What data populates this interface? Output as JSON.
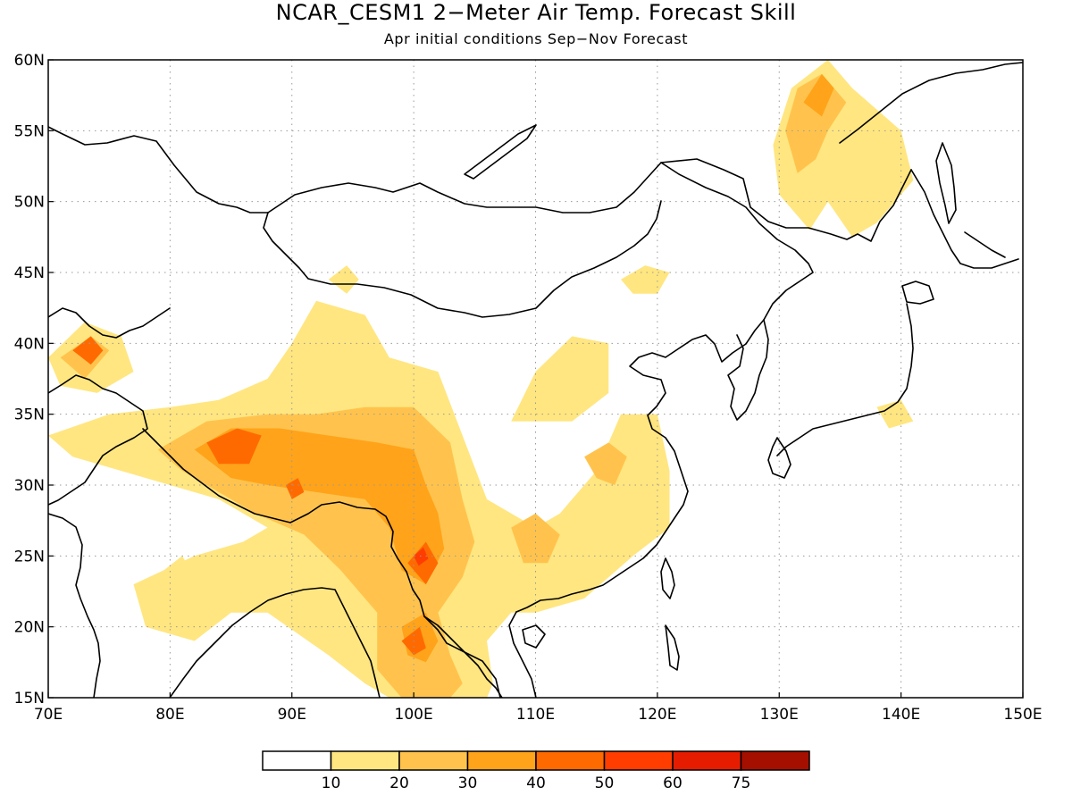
{
  "title": "NCAR_CESM1 2−Meter Air Temp. Forecast Skill",
  "subtitle": "Apr initial conditions  Sep−Nov Forecast",
  "map": {
    "lon_range": [
      70,
      150
    ],
    "lat_range": [
      15,
      60
    ],
    "lon_ticks": [
      "70E",
      "80E",
      "90E",
      "100E",
      "110E",
      "120E",
      "130E",
      "140E",
      "150E"
    ],
    "lat_ticks": [
      "15N",
      "20N",
      "25N",
      "30N",
      "35N",
      "40N",
      "45N",
      "50N",
      "55N",
      "60N"
    ],
    "grid": "dotted"
  },
  "colorbar": {
    "labels": [
      "10",
      "20",
      "30",
      "40",
      "50",
      "60",
      "75"
    ],
    "colors": [
      "#ffffff",
      "#ffe680",
      "#ffc34d",
      "#ffa31a",
      "#ff6a00",
      "#ff3d00",
      "#e61c00",
      "#a50f00"
    ]
  },
  "skill_regions": [
    {
      "level": 1,
      "points": [
        [
          70,
          33.5
        ],
        [
          75,
          35
        ],
        [
          80,
          35.5
        ],
        [
          84,
          36
        ],
        [
          88,
          37.5
        ],
        [
          90,
          40
        ],
        [
          92,
          43
        ],
        [
          96,
          42
        ],
        [
          98,
          39
        ],
        [
          102,
          38
        ],
        [
          104,
          33.5
        ],
        [
          106,
          29
        ],
        [
          110,
          27
        ],
        [
          112,
          28
        ],
        [
          115,
          31
        ],
        [
          117,
          35
        ],
        [
          120,
          35
        ],
        [
          121,
          31
        ],
        [
          121,
          27
        ],
        [
          118,
          25
        ],
        [
          114,
          22
        ],
        [
          110,
          21
        ],
        [
          108,
          21
        ],
        [
          106,
          19
        ],
        [
          106.5,
          16
        ],
        [
          106,
          15
        ],
        [
          98,
          15
        ],
        [
          96,
          16
        ],
        [
          93,
          18
        ],
        [
          88,
          21
        ],
        [
          85,
          21
        ],
        [
          82,
          19
        ],
        [
          78,
          20
        ],
        [
          77,
          23
        ],
        [
          82,
          25
        ],
        [
          86,
          26
        ],
        [
          88,
          27
        ],
        [
          84,
          29
        ],
        [
          80,
          30
        ],
        [
          76,
          31
        ],
        [
          72,
          32
        ]
      ]
    },
    {
      "level": 1,
      "points": [
        [
          70,
          39
        ],
        [
          73,
          41.5
        ],
        [
          76,
          40.5
        ],
        [
          77,
          38
        ],
        [
          74,
          36.5
        ],
        [
          71,
          37
        ]
      ]
    },
    {
      "level": 1,
      "points": [
        [
          108,
          34.5
        ],
        [
          110,
          38
        ],
        [
          113,
          40.5
        ],
        [
          116,
          40
        ],
        [
          116,
          36.5
        ],
        [
          113,
          34.5
        ]
      ]
    },
    {
      "level": 1,
      "points": [
        [
          129.5,
          54
        ],
        [
          131,
          58
        ],
        [
          134,
          60
        ],
        [
          136,
          58
        ],
        [
          140,
          55
        ],
        [
          141,
          51.5
        ],
        [
          138,
          48.5
        ],
        [
          136,
          47.5
        ],
        [
          134,
          50
        ],
        [
          132.5,
          48
        ],
        [
          130,
          50.5
        ]
      ]
    },
    {
      "level": 1,
      "points": [
        [
          117,
          44.5
        ],
        [
          119,
          45.5
        ],
        [
          121,
          45
        ],
        [
          120,
          43.5
        ],
        [
          118,
          43.5
        ]
      ]
    },
    {
      "level": 1,
      "points": [
        [
          93,
          44.5
        ],
        [
          94.5,
          45.5
        ],
        [
          95.5,
          44.5
        ],
        [
          94.5,
          43.5
        ]
      ]
    },
    {
      "level": 1,
      "points": [
        [
          138,
          35.5
        ],
        [
          140,
          36
        ],
        [
          141,
          34.5
        ],
        [
          139,
          34
        ]
      ]
    },
    {
      "level": 1,
      "points": [
        [
          79.5,
          24
        ],
        [
          81,
          25
        ],
        [
          82,
          23.5
        ],
        [
          80.5,
          23
        ]
      ]
    },
    {
      "level": 2,
      "points": [
        [
          79,
          32.5
        ],
        [
          83,
          34.5
        ],
        [
          88,
          35
        ],
        [
          92,
          35
        ],
        [
          96,
          35.5
        ],
        [
          100,
          35.5
        ],
        [
          103,
          33
        ],
        [
          104,
          29
        ],
        [
          105,
          26
        ],
        [
          104,
          23.5
        ],
        [
          102,
          21
        ],
        [
          103,
          18
        ],
        [
          104,
          16
        ],
        [
          103,
          15
        ],
        [
          99,
          15
        ],
        [
          97,
          17
        ],
        [
          97,
          21
        ],
        [
          94,
          24
        ],
        [
          91,
          26.5
        ],
        [
          87,
          28
        ],
        [
          84,
          29.5
        ],
        [
          81,
          31
        ]
      ]
    },
    {
      "level": 2,
      "points": [
        [
          130.5,
          55
        ],
        [
          131.5,
          58
        ],
        [
          133.5,
          59
        ],
        [
          135.5,
          57
        ],
        [
          134,
          55
        ],
        [
          133,
          53
        ],
        [
          131.5,
          52
        ]
      ]
    },
    {
      "level": 2,
      "points": [
        [
          108,
          27
        ],
        [
          110,
          28
        ],
        [
          112,
          26.5
        ],
        [
          111,
          24.5
        ],
        [
          109,
          24.5
        ]
      ]
    },
    {
      "level": 2,
      "points": [
        [
          114,
          32
        ],
        [
          116,
          33
        ],
        [
          117.5,
          32
        ],
        [
          116.5,
          30
        ],
        [
          115,
          30.5
        ]
      ]
    },
    {
      "level": 2,
      "points": [
        [
          71,
          39
        ],
        [
          73.5,
          40.5
        ],
        [
          75,
          39.5
        ],
        [
          73,
          37.5
        ]
      ]
    },
    {
      "level": 3,
      "points": [
        [
          82,
          32.5
        ],
        [
          85,
          34
        ],
        [
          89,
          34
        ],
        [
          93,
          33.5
        ],
        [
          97,
          33
        ],
        [
          100,
          32.5
        ],
        [
          101,
          30
        ],
        [
          102,
          28
        ],
        [
          102.5,
          25.5
        ],
        [
          101,
          23
        ],
        [
          99,
          24
        ],
        [
          98,
          27
        ],
        [
          96,
          29
        ],
        [
          92,
          29.5
        ],
        [
          88,
          30
        ],
        [
          85,
          30.5
        ]
      ]
    },
    {
      "level": 3,
      "points": [
        [
          99,
          20
        ],
        [
          101,
          21
        ],
        [
          102,
          19
        ],
        [
          101,
          17.5
        ],
        [
          99.5,
          18
        ]
      ]
    },
    {
      "level": 3,
      "points": [
        [
          132,
          57
        ],
        [
          133.5,
          59
        ],
        [
          134.5,
          58
        ],
        [
          133.5,
          56
        ]
      ]
    },
    {
      "level": 4,
      "points": [
        [
          83,
          33
        ],
        [
          85.5,
          34
        ],
        [
          87.5,
          33.5
        ],
        [
          86.5,
          31.5
        ],
        [
          84,
          31.5
        ]
      ]
    },
    {
      "level": 4,
      "points": [
        [
          99.5,
          24.5
        ],
        [
          101,
          26
        ],
        [
          102,
          24.5
        ],
        [
          101,
          23
        ]
      ]
    },
    {
      "level": 4,
      "points": [
        [
          72,
          39.5
        ],
        [
          73.5,
          40.5
        ],
        [
          74.5,
          39.5
        ],
        [
          73.5,
          38.5
        ]
      ]
    },
    {
      "level": 4,
      "points": [
        [
          99,
          19
        ],
        [
          100.5,
          20
        ],
        [
          101,
          18.5
        ],
        [
          100,
          18
        ]
      ]
    },
    {
      "level": 4,
      "points": [
        [
          89.5,
          30
        ],
        [
          90.5,
          30.5
        ],
        [
          91,
          29.5
        ],
        [
          90,
          29
        ]
      ]
    },
    {
      "level": 5,
      "points": [
        [
          100,
          25
        ],
        [
          100.8,
          25.6
        ],
        [
          101.2,
          24.8
        ],
        [
          100.4,
          24.3
        ]
      ]
    }
  ]
}
